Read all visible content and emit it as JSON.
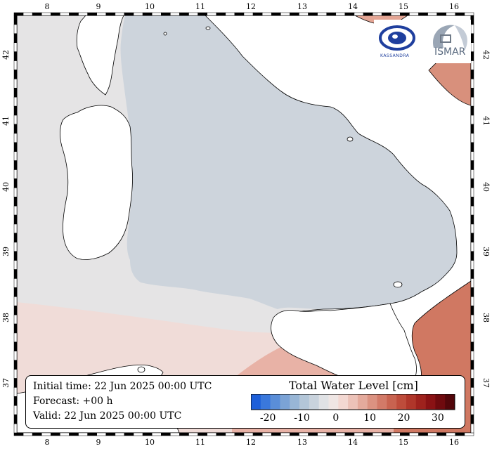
{
  "map": {
    "lon_ticks": [
      "8",
      "9",
      "10",
      "11",
      "12",
      "13",
      "14",
      "15",
      "16"
    ],
    "lat_ticks": [
      "42",
      "41",
      "40",
      "39",
      "38",
      "37"
    ]
  },
  "info": {
    "initial": "Initial time: 22 Jun 2025 00:00 UTC",
    "forecast": "Forecast: +00 h",
    "valid": "Valid: 22 Jun 2025 00:00 UTC"
  },
  "colorbar": {
    "title": "Total Water Level [cm]",
    "min": -25,
    "max": 35,
    "ticks": [
      "-20",
      "-10",
      "0",
      "10",
      "20",
      "30"
    ],
    "colors": [
      "#1d5fd9",
      "#3a78dc",
      "#5a8ed8",
      "#7ba3d6",
      "#98b6d6",
      "#b3c6d8",
      "#c9d3dd",
      "#e0e2e5",
      "#efe6e4",
      "#f3d8d2",
      "#ecc2b8",
      "#e4aa9c",
      "#db9281",
      "#d27a68",
      "#c86350",
      "#be4c3b",
      "#b0362a",
      "#9f221d",
      "#8a1214",
      "#6f0a0e",
      "#52060a"
    ]
  },
  "logos": {
    "left": "KASSANDRA",
    "right": "ISMAR"
  }
}
